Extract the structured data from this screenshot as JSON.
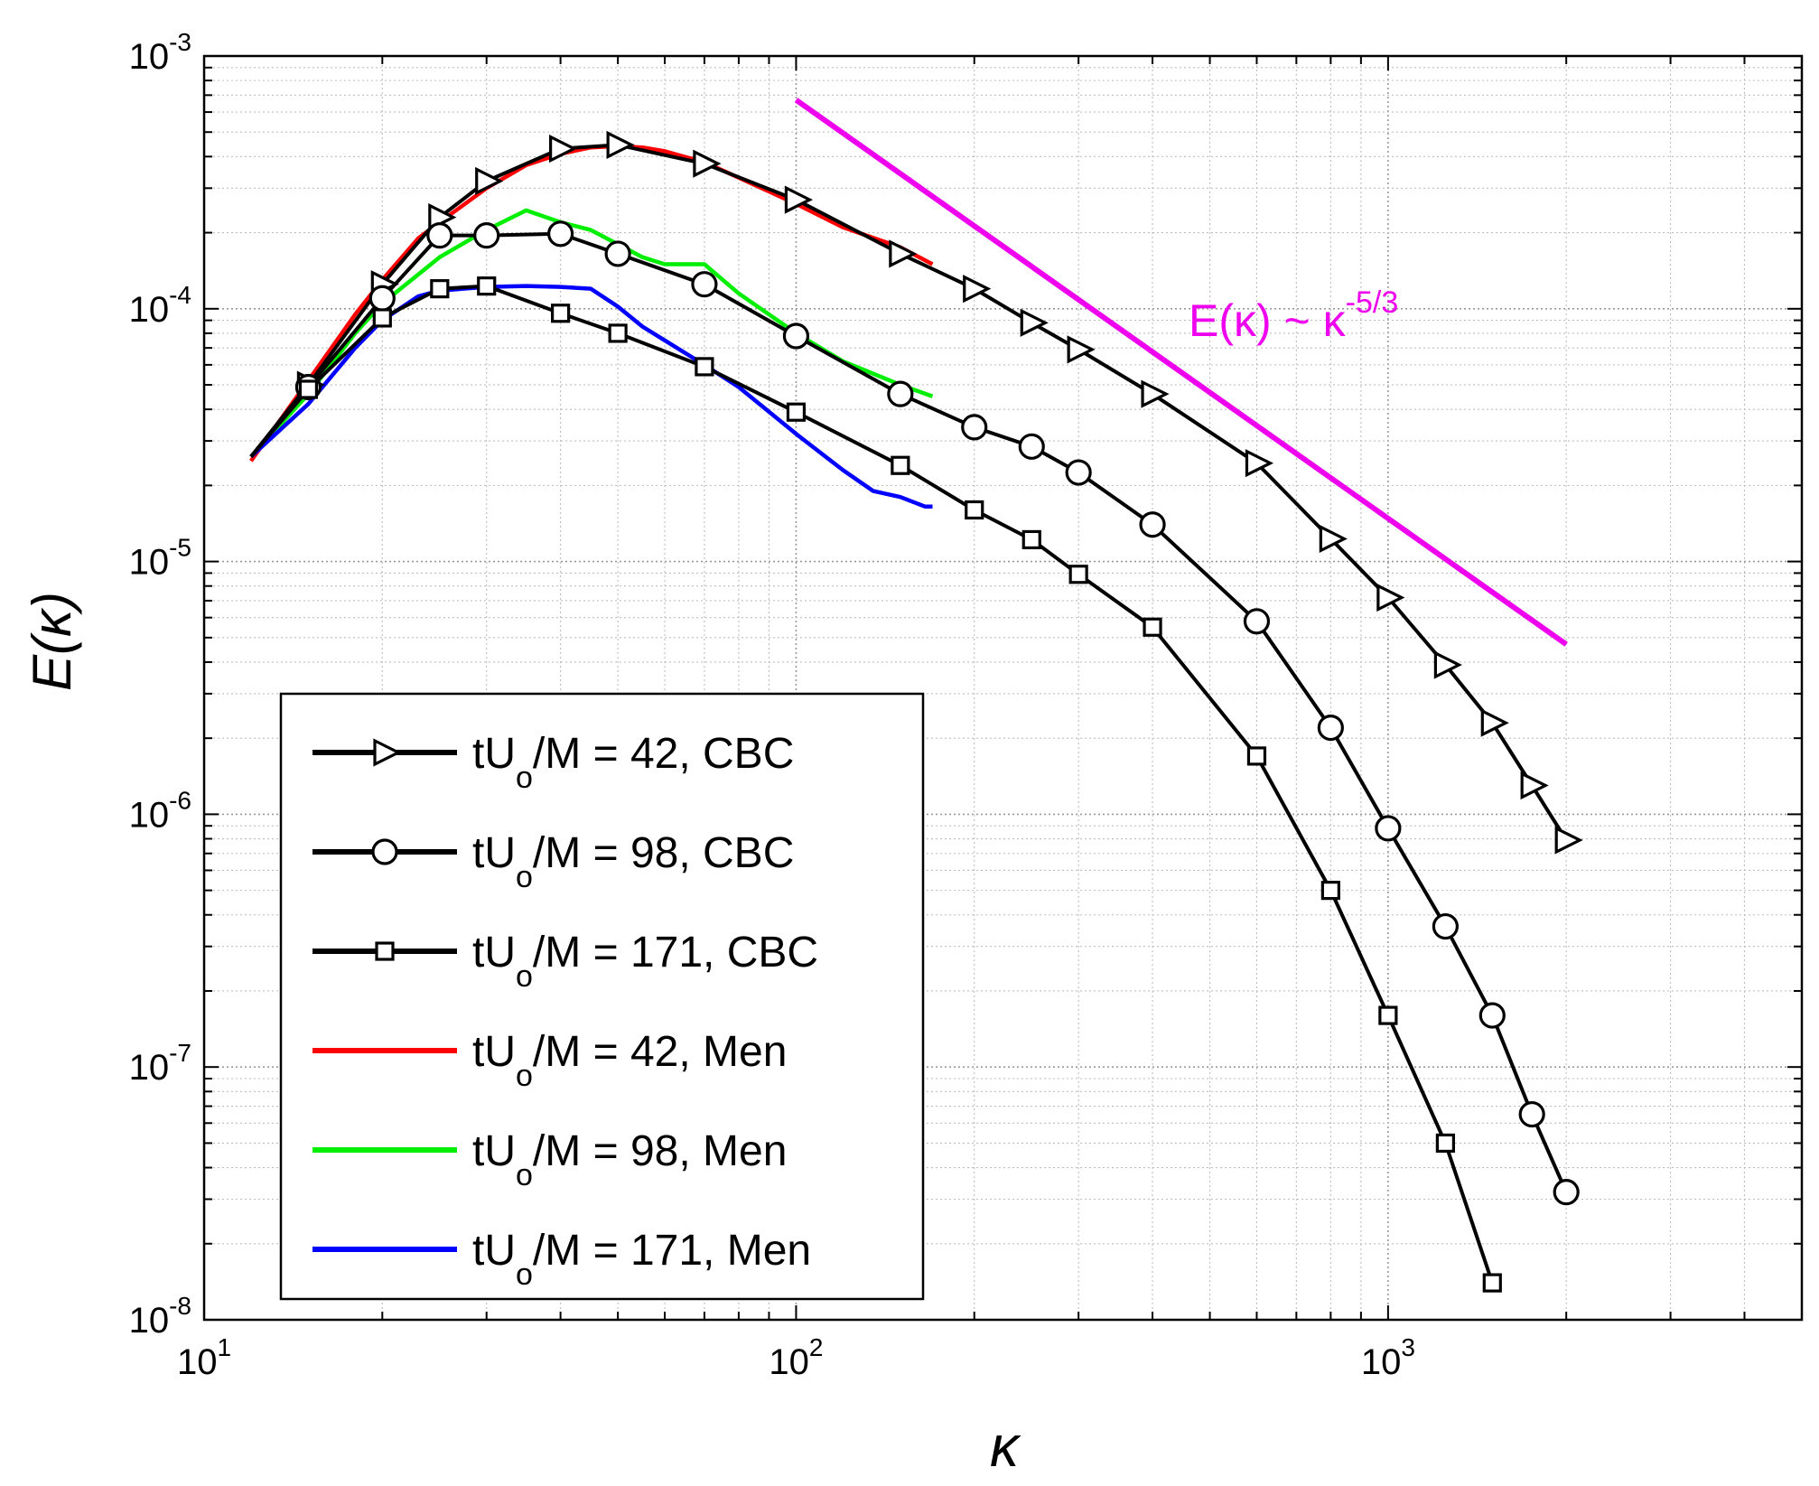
{
  "chart_data": {
    "type": "line",
    "title": "",
    "xlabel": "κ",
    "ylabel": "E(κ)",
    "xscale": "log",
    "yscale": "log",
    "xlim": [
      10,
      5000
    ],
    "ylim": [
      1e-08,
      0.001
    ],
    "grid": true,
    "x_ticks": [
      {
        "value": 10,
        "base": "10",
        "exp": "1"
      },
      {
        "value": 100,
        "base": "10",
        "exp": "2"
      },
      {
        "value": 1000,
        "base": "10",
        "exp": "3"
      }
    ],
    "y_ticks": [
      {
        "value": 1e-08,
        "base": "10",
        "exp": "-8"
      },
      {
        "value": 1e-07,
        "base": "10",
        "exp": "-7"
      },
      {
        "value": 1e-06,
        "base": "10",
        "exp": "-6"
      },
      {
        "value": 1e-05,
        "base": "10",
        "exp": "-5"
      },
      {
        "value": 0.0001,
        "base": "10",
        "exp": "-4"
      },
      {
        "value": 0.001,
        "base": "10",
        "exp": "-3"
      }
    ],
    "legend_position": "bottom-left",
    "series": [
      {
        "name": "tUo/M = 42, CBC",
        "label_pre": "tU",
        "label_sub": "o",
        "label_post": "/M = 42, CBC",
        "color": "#000000",
        "marker": "triangle-right",
        "x": [
          12,
          15,
          20,
          25,
          30,
          40,
          50,
          70,
          100,
          150,
          200,
          250,
          300,
          400,
          600,
          800,
          1000,
          1250,
          1500,
          1750,
          2000
        ],
        "y": [
          2.6e-05,
          5e-05,
          0.000125,
          0.00023,
          0.00032,
          0.00043,
          0.000445,
          0.000375,
          0.00027,
          0.000165,
          0.00012,
          8.8e-05,
          6.9e-05,
          4.6e-05,
          2.45e-05,
          1.23e-05,
          7.2e-06,
          3.9e-06,
          2.3e-06,
          1.3e-06,
          7.9e-07
        ]
      },
      {
        "name": "tUo/M = 98, CBC",
        "label_pre": "tU",
        "label_sub": "o",
        "label_post": "/M = 98, CBC",
        "color": "#000000",
        "marker": "circle",
        "x": [
          12,
          15,
          20,
          25,
          30,
          40,
          50,
          70,
          100,
          150,
          200,
          250,
          300,
          400,
          600,
          800,
          1000,
          1250,
          1500,
          1750,
          2000
        ],
        "y": [
          2.6e-05,
          4.9e-05,
          0.00011,
          0.000195,
          0.000195,
          0.000198,
          0.000165,
          0.000125,
          7.8e-05,
          4.6e-05,
          3.4e-05,
          2.85e-05,
          2.25e-05,
          1.4e-05,
          5.8e-06,
          2.2e-06,
          8.8e-07,
          3.6e-07,
          1.6e-07,
          6.5e-08,
          3.2e-08
        ]
      },
      {
        "name": "tUo/M = 171, CBC",
        "label_pre": "tU",
        "label_sub": "o",
        "label_post": "/M = 171, CBC",
        "color": "#000000",
        "marker": "square",
        "x": [
          12,
          15,
          20,
          25,
          30,
          40,
          50,
          70,
          100,
          150,
          200,
          250,
          300,
          400,
          600,
          800,
          1000,
          1250,
          1500
        ],
        "y": [
          2.6e-05,
          4.8e-05,
          9.2e-05,
          0.00012,
          0.000123,
          9.6e-05,
          8e-05,
          5.9e-05,
          3.9e-05,
          2.4e-05,
          1.6e-05,
          1.22e-05,
          8.9e-06,
          5.5e-06,
          1.7e-06,
          5e-07,
          1.6e-07,
          5e-08,
          1.4e-08
        ]
      },
      {
        "name": "tUo/M = 42, Men",
        "label_pre": "tU",
        "label_sub": "o",
        "label_post": "/M = 42, Men",
        "color": "#ff0000",
        "marker": "none",
        "x": [
          12,
          15,
          18,
          20,
          23,
          25,
          30,
          35,
          40,
          45,
          50,
          55,
          60,
          70,
          80,
          100,
          120,
          150,
          170
        ],
        "y": [
          2.5e-05,
          5.2e-05,
          9.5e-05,
          0.00013,
          0.00019,
          0.00022,
          0.0003,
          0.00037,
          0.00041,
          0.000435,
          0.00044,
          0.000435,
          0.00042,
          0.00038,
          0.00033,
          0.00026,
          0.00021,
          0.000175,
          0.00015
        ]
      },
      {
        "name": "tUo/M = 98, Men",
        "label_pre": "tU",
        "label_sub": "o",
        "label_post": "/M = 98, Men",
        "color": "#00ee00",
        "marker": "none",
        "x": [
          12,
          15,
          18,
          20,
          25,
          30,
          35,
          40,
          45,
          50,
          55,
          60,
          70,
          80,
          100,
          120,
          150,
          170
        ],
        "y": [
          2.6e-05,
          4.6e-05,
          8e-05,
          0.000105,
          0.00016,
          0.000205,
          0.000245,
          0.00022,
          0.000205,
          0.00018,
          0.00016,
          0.00015,
          0.00015,
          0.000115,
          8e-05,
          6.2e-05,
          5e-05,
          4.5e-05
        ]
      },
      {
        "name": "tUo/M = 171, Men",
        "label_pre": "tU",
        "label_sub": "o",
        "label_post": "/M = 171, Men",
        "color": "#0000ff",
        "marker": "none",
        "x": [
          12,
          15,
          18,
          20,
          23,
          25,
          30,
          35,
          40,
          45,
          50,
          55,
          60,
          70,
          80,
          100,
          120,
          135,
          150,
          165,
          170
        ],
        "y": [
          2.6e-05,
          4.2e-05,
          7e-05,
          9e-05,
          0.000112,
          0.000118,
          0.000122,
          0.000123,
          0.000122,
          0.00012,
          0.000102,
          8.5e-05,
          7.5e-05,
          6e-05,
          4.9e-05,
          3.2e-05,
          2.3e-05,
          1.9e-05,
          1.8e-05,
          1.65e-05,
          1.65e-05
        ]
      }
    ],
    "reference_line": {
      "color": "#ee00ee",
      "x": [
        100,
        2000
      ],
      "y": [
        0.00067,
        4.7e-06
      ],
      "label_main": "E(κ) ~ κ",
      "label_exp": "-5/3"
    }
  }
}
